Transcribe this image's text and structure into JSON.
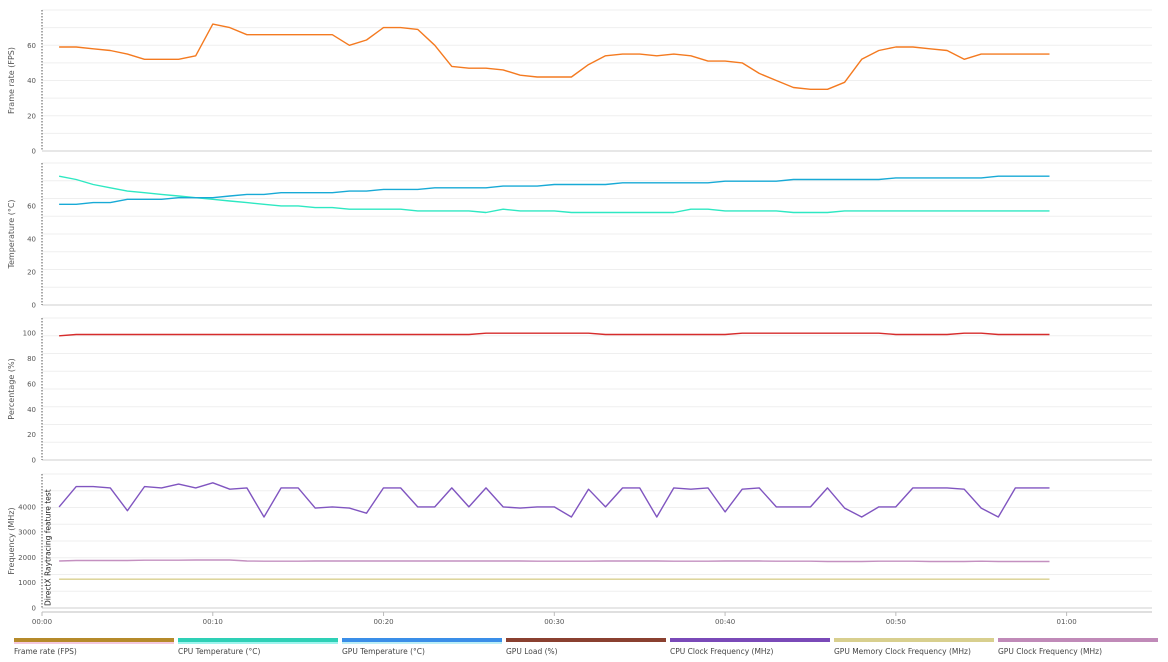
{
  "chart_data": {
    "type": "line",
    "x_ticks": [
      "00:00",
      "00:10",
      "00:20",
      "00:30",
      "00:40",
      "00:50",
      "01:00"
    ],
    "x_tick_values": [
      0,
      10,
      20,
      30,
      40,
      50,
      60
    ],
    "xlim": [
      0,
      65
    ],
    "x": [
      1,
      2,
      3,
      4,
      5,
      6,
      7,
      8,
      9,
      10,
      11,
      12,
      13,
      14,
      15,
      16,
      17,
      18,
      19,
      20,
      21,
      22,
      23,
      24,
      25,
      26,
      27,
      28,
      29,
      30,
      31,
      32,
      33,
      34,
      35,
      36,
      37,
      38,
      39,
      40,
      41,
      42,
      43,
      44,
      45,
      46,
      47,
      48,
      49,
      50,
      51,
      52,
      53,
      54,
      55,
      56,
      57,
      58,
      59
    ],
    "annotation": "DirectX Raytracing feature test",
    "annotation_x": 0.5,
    "panels": [
      {
        "ylabel": "Frame rate (FPS)",
        "yticks": [
          0,
          20,
          40,
          60
        ],
        "ylim": [
          0,
          80
        ],
        "series": [
          {
            "name": "Frame rate (FPS)",
            "color": "#f47a20",
            "values": [
              59,
              59,
              58,
              57,
              55,
              52,
              52,
              52,
              54,
              72,
              70,
              66,
              66,
              66,
              66,
              66,
              66,
              60,
              63,
              70,
              70,
              69,
              60,
              48,
              47,
              47,
              46,
              43,
              42,
              42,
              42,
              49,
              54,
              55,
              55,
              54,
              55,
              54,
              51,
              51,
              50,
              44,
              40,
              36,
              35,
              35,
              39,
              52,
              57,
              59,
              59,
              58,
              57,
              52,
              55,
              55,
              55,
              55,
              55
            ]
          }
        ]
      },
      {
        "ylabel": "Temperature (°C)",
        "yticks": [
          0,
          20,
          40,
          60
        ],
        "ylim": [
          0,
          86
        ],
        "series": [
          {
            "name": "CPU Temperature (°C)",
            "color": "#2ee8c2",
            "values": [
              78,
              76,
              73,
              71,
              69,
              68,
              67,
              66,
              65,
              64,
              63,
              62,
              61,
              60,
              60,
              59,
              59,
              58,
              58,
              58,
              58,
              57,
              57,
              57,
              57,
              56,
              58,
              57,
              57,
              57,
              56,
              56,
              56,
              56,
              56,
              56,
              56,
              58,
              58,
              57,
              57,
              57,
              57,
              56,
              56,
              56,
              57,
              57,
              57,
              57,
              57,
              57,
              57,
              57,
              57,
              57,
              57,
              57,
              57
            ]
          },
          {
            "name": "GPU Temperature (°C)",
            "color": "#18aad6",
            "values": [
              61,
              61,
              62,
              62,
              64,
              64,
              64,
              65,
              65,
              65,
              66,
              67,
              67,
              68,
              68,
              68,
              68,
              69,
              69,
              70,
              70,
              70,
              71,
              71,
              71,
              71,
              72,
              72,
              72,
              73,
              73,
              73,
              73,
              74,
              74,
              74,
              74,
              74,
              74,
              75,
              75,
              75,
              75,
              76,
              76,
              76,
              76,
              76,
              76,
              77,
              77,
              77,
              77,
              77,
              77,
              78,
              78,
              78,
              78
            ]
          }
        ]
      },
      {
        "ylabel": "Percentage (%)",
        "yticks": [
          0,
          20,
          40,
          60,
          80,
          100
        ],
        "ylim": [
          0,
          112
        ],
        "series": [
          {
            "name": "GPU Load (%)",
            "color": "#d62c2c",
            "values": [
              98,
              99,
              99,
              99,
              99,
              99,
              99,
              99,
              99,
              99,
              99,
              99,
              99,
              99,
              99,
              99,
              99,
              99,
              99,
              99,
              99,
              99,
              99,
              99,
              99,
              100,
              100,
              100,
              100,
              100,
              100,
              100,
              99,
              99,
              99,
              99,
              99,
              99,
              99,
              99,
              100,
              100,
              100,
              100,
              100,
              100,
              100,
              100,
              100,
              99,
              99,
              99,
              99,
              100,
              100,
              99,
              99,
              99,
              99
            ]
          }
        ]
      },
      {
        "ylabel": "Frequency (MHz)",
        "yticks": [
          0,
          1000,
          2000,
          3000,
          4000
        ],
        "ylim": [
          0,
          5300
        ],
        "series": [
          {
            "name": "CPU Clock Frequency (MHz)",
            "color": "#8055c0",
            "values": [
              4000,
              4800,
              4800,
              4750,
              3850,
              4800,
              4750,
              4900,
              4750,
              4950,
              4700,
              4750,
              3600,
              4750,
              4750,
              3950,
              4000,
              3950,
              3750,
              4750,
              4750,
              4000,
              4000,
              4750,
              4000,
              4750,
              4000,
              3950,
              4000,
              4000,
              3600,
              4700,
              4000,
              4750,
              4750,
              3600,
              4750,
              4700,
              4750,
              3800,
              4700,
              4750,
              4000,
              4000,
              4000,
              4750,
              3950,
              3600,
              4000,
              4000,
              4750,
              4750,
              4750,
              4700,
              3950,
              3600,
              4750,
              4750,
              4750
            ]
          },
          {
            "name": "GPU Memory Clock Frequency (MHz)",
            "color": "#d8cf8e",
            "values": [
              1140,
              1140,
              1140,
              1140,
              1140,
              1140,
              1140,
              1140,
              1140,
              1140,
              1140,
              1140,
              1140,
              1140,
              1140,
              1140,
              1140,
              1140,
              1140,
              1140,
              1140,
              1140,
              1140,
              1140,
              1140,
              1140,
              1140,
              1140,
              1140,
              1140,
              1140,
              1140,
              1140,
              1140,
              1140,
              1140,
              1140,
              1140,
              1140,
              1140,
              1140,
              1140,
              1140,
              1140,
              1140,
              1140,
              1140,
              1140,
              1140,
              1140,
              1140,
              1140,
              1140,
              1140,
              1140,
              1140,
              1140,
              1140,
              1140
            ]
          },
          {
            "name": "GPU Clock Frequency (MHz)",
            "color": "#c490c0",
            "values": [
              1860,
              1880,
              1880,
              1880,
              1880,
              1890,
              1890,
              1890,
              1900,
              1900,
              1900,
              1860,
              1850,
              1850,
              1850,
              1860,
              1860,
              1860,
              1860,
              1860,
              1860,
              1860,
              1860,
              1860,
              1860,
              1860,
              1860,
              1860,
              1850,
              1850,
              1850,
              1850,
              1860,
              1860,
              1860,
              1860,
              1850,
              1850,
              1850,
              1860,
              1860,
              1860,
              1850,
              1850,
              1850,
              1840,
              1840,
              1840,
              1850,
              1850,
              1850,
              1840,
              1840,
              1840,
              1850,
              1840,
              1840,
              1840,
              1840
            ]
          }
        ]
      }
    ]
  },
  "legend": [
    {
      "label": "Frame rate (FPS)",
      "color": "#b58a2a",
      "color2": "#f4c8de"
    },
    {
      "label": "CPU Temperature (°C)",
      "color": "#2ed0b6",
      "color2": "#9ef4ee"
    },
    {
      "label": "GPU Temperature (°C)",
      "color": "#3a8ee8",
      "color2": "#bceef6"
    },
    {
      "label": "GPU Load (%)",
      "color": "#8a4030",
      "color2": "#ffffff"
    },
    {
      "label": "CPU Clock Frequency (MHz)",
      "color": "#7a4ab8",
      "color2": "#ffffff"
    },
    {
      "label": "GPU Memory Clock Frequency (MHz)",
      "color": "#d8cf8e",
      "color2": "#ffffff"
    },
    {
      "label": "GPU Clock Frequency (MHz)",
      "color": "#c08ab8",
      "color2": "#ffffff"
    }
  ]
}
